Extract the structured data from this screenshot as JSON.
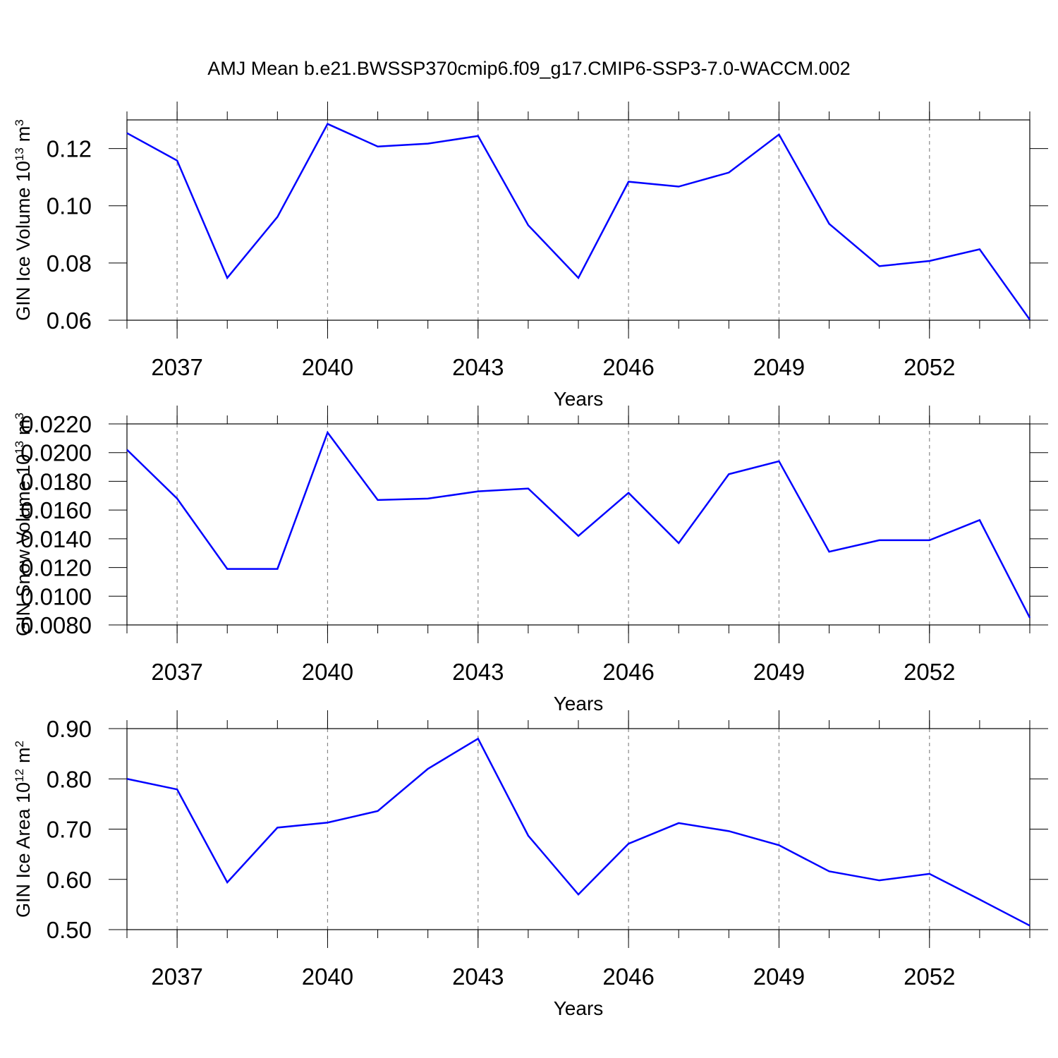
{
  "chart_data": [
    {
      "type": "line",
      "title": "AMJ Mean b.e21.BWSSP370cmip6.f09_g17.CMIP6-SSP3-7.0-WACCM.002",
      "xlabel": "Years",
      "ylabel": "GIN Ice Volume 10",
      "ylabel_exp": "13",
      "ylabel_unit": "m",
      "ylabel_unit_exp": "3",
      "x": [
        2036,
        2037,
        2038,
        2039,
        2040,
        2041,
        2042,
        2043,
        2044,
        2045,
        2046,
        2047,
        2048,
        2049,
        2050,
        2051,
        2052,
        2053,
        2054
      ],
      "series": [
        {
          "color": "#0000ff",
          "values": [
            0.1254,
            0.1158,
            0.0748,
            0.0961,
            0.1286,
            0.1207,
            0.1217,
            0.1244,
            0.0932,
            0.0748,
            0.1084,
            0.1067,
            0.1116,
            0.1249,
            0.0937,
            0.0789,
            0.0807,
            0.0848,
            0.0602
          ]
        }
      ],
      "xlim": [
        2036,
        2054
      ],
      "xticks": [
        2037,
        2040,
        2043,
        2046,
        2049,
        2052
      ],
      "ylim": [
        0.06,
        0.13
      ],
      "yticks": [
        0.06,
        0.08,
        {
          "value": 0.1,
          "label": "0.10"
        },
        0.12
      ],
      "grid": true
    },
    {
      "type": "line",
      "xlabel": "Years",
      "ylabel": "GIN Snow Volume 10",
      "ylabel_exp": "13",
      "ylabel_unit": "m",
      "ylabel_unit_exp": "3",
      "x": [
        2036,
        2037,
        2038,
        2039,
        2040,
        2041,
        2042,
        2043,
        2044,
        2045,
        2046,
        2047,
        2048,
        2049,
        2050,
        2051,
        2052,
        2053,
        2054
      ],
      "series": [
        {
          "color": "#0000ff",
          "values": [
            0.0202,
            0.0168,
            0.0119,
            0.0119,
            0.0214,
            0.0167,
            0.0168,
            0.0173,
            0.0175,
            0.0142,
            0.0172,
            0.0137,
            0.0185,
            0.0194,
            0.0131,
            0.0139,
            0.0139,
            0.0153,
            0.0085
          ]
        }
      ],
      "xlim": [
        2036,
        2054
      ],
      "xticks": [
        2037,
        2040,
        2043,
        2046,
        2049,
        2052
      ],
      "ylim": [
        0.008,
        0.022
      ],
      "yticks": [
        {
          "value": 0.008,
          "label": "0.0080"
        },
        {
          "value": 0.01,
          "label": "0.0100"
        },
        {
          "value": 0.012,
          "label": "0.0120"
        },
        {
          "value": 0.014,
          "label": "0.0140"
        },
        {
          "value": 0.016,
          "label": "0.0160"
        },
        {
          "value": 0.018,
          "label": "0.0180"
        },
        {
          "value": 0.02,
          "label": "0.0200"
        },
        {
          "value": 0.022,
          "label": "0.0220"
        }
      ],
      "grid": true
    },
    {
      "type": "line",
      "xlabel": "Years",
      "ylabel": "GIN Ice Area 10",
      "ylabel_exp": "12",
      "ylabel_unit": "m",
      "ylabel_unit_exp": "2",
      "x": [
        2036,
        2037,
        2038,
        2039,
        2040,
        2041,
        2042,
        2043,
        2044,
        2045,
        2046,
        2047,
        2048,
        2049,
        2050,
        2051,
        2052,
        2053,
        2054
      ],
      "series": [
        {
          "color": "#0000ff",
          "values": [
            0.8,
            0.779,
            0.594,
            0.703,
            0.713,
            0.736,
            0.82,
            0.88,
            0.687,
            0.57,
            0.671,
            0.712,
            0.696,
            0.668,
            0.616,
            0.598,
            0.611,
            0.56,
            0.508
          ]
        }
      ],
      "xlim": [
        2036,
        2054
      ],
      "xticks": [
        2037,
        2040,
        2043,
        2046,
        2049,
        2052
      ],
      "ylim": [
        0.5,
        0.9
      ],
      "yticks": [
        {
          "value": 0.5,
          "label": "0.50"
        },
        {
          "value": 0.6,
          "label": "0.60"
        },
        {
          "value": 0.7,
          "label": "0.70"
        },
        {
          "value": 0.8,
          "label": "0.80"
        },
        {
          "value": 0.9,
          "label": "0.90"
        }
      ],
      "grid": true
    }
  ]
}
